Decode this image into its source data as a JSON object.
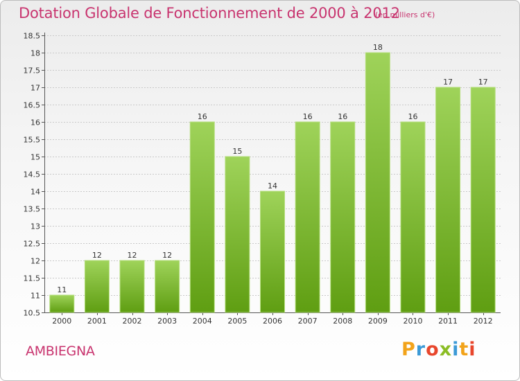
{
  "title": "Dotation Globale de Fonctionnement de 2000 à 2012",
  "subtitle": "(en milliers d'€)",
  "commune": "AMBIEGNA",
  "logo": {
    "text": "Proxiti",
    "letters": [
      "P",
      "r",
      "o",
      "x",
      "i",
      "t",
      "i"
    ]
  },
  "colors": {
    "bar_top": "#9fd35a",
    "bar_bottom": "#5f9e12",
    "bar_edge": "#b6df7e",
    "title": "#c8336e",
    "axis": "#555555",
    "grid": "#c9c9c9"
  },
  "chart_data": {
    "type": "bar",
    "categories": [
      "2000",
      "2001",
      "2002",
      "2003",
      "2004",
      "2005",
      "2006",
      "2007",
      "2008",
      "2009",
      "2010",
      "2011",
      "2012"
    ],
    "values": [
      11,
      12,
      12,
      12,
      16,
      15,
      14,
      16,
      16,
      18,
      16,
      17,
      17
    ],
    "ylim": [
      10.5,
      18.5
    ],
    "yticks": [
      10.5,
      11,
      11.5,
      12,
      12.5,
      13,
      13.5,
      14,
      14.5,
      15,
      15.5,
      16,
      16.5,
      17,
      17.5,
      18,
      18.5
    ],
    "ytick_labels": [
      "10.5",
      "11",
      "11.5",
      "12",
      "12.5",
      "13",
      "13.5",
      "14",
      "14.5",
      "15",
      "15.5",
      "16",
      "16.5",
      "17",
      "17.5",
      "18",
      "18.5"
    ],
    "grid": true,
    "xlabel": "",
    "ylabel": ""
  }
}
